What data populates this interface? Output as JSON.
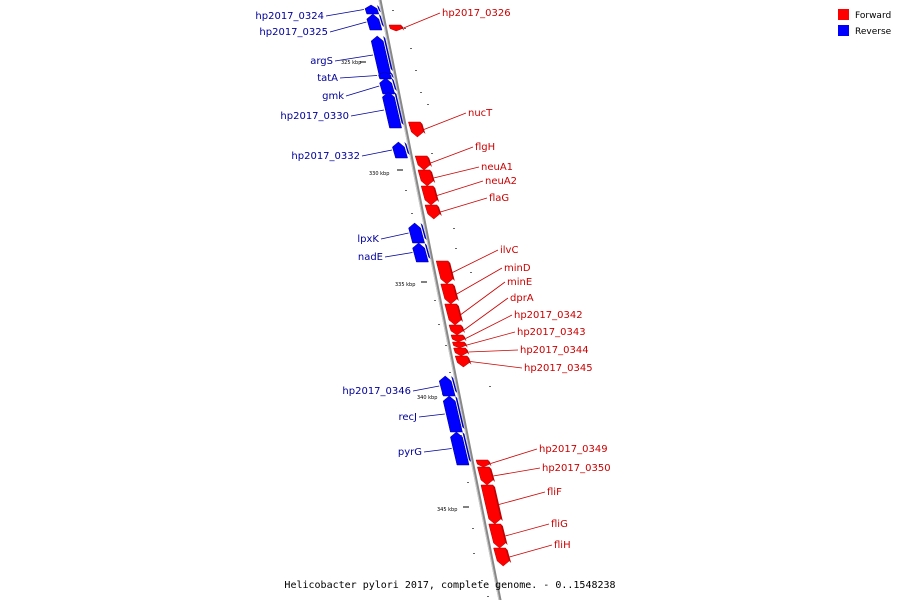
{
  "legend": {
    "forward_label": "Forward",
    "reverse_label": "Reverse",
    "forward_color": "#ff0000",
    "reverse_color": "#0000ff"
  },
  "colors": {
    "backbone": "#888888",
    "forward_label": "#cc0000",
    "reverse_label": "#00009a"
  },
  "caption": "Helicobacter pylori 2017, complete genome. - 0..1548238",
  "ticks": [
    "325 kbp",
    "330 kbp",
    "335 kbp",
    "340 kbp",
    "345 kbp"
  ],
  "genes": [
    {
      "name": "hp2017_0324",
      "strand": "reverse"
    },
    {
      "name": "hp2017_0325",
      "strand": "reverse"
    },
    {
      "name": "hp2017_0326",
      "strand": "forward"
    },
    {
      "name": "argS",
      "strand": "reverse"
    },
    {
      "name": "tatA",
      "strand": "reverse"
    },
    {
      "name": "gmk",
      "strand": "reverse"
    },
    {
      "name": "hp2017_0330",
      "strand": "reverse"
    },
    {
      "name": "nucT",
      "strand": "forward"
    },
    {
      "name": "flgH",
      "strand": "forward"
    },
    {
      "name": "hp2017_0332",
      "strand": "reverse"
    },
    {
      "name": "neuA1",
      "strand": "forward"
    },
    {
      "name": "neuA2",
      "strand": "forward"
    },
    {
      "name": "flaG",
      "strand": "forward"
    },
    {
      "name": "lpxK",
      "strand": "reverse"
    },
    {
      "name": "nadE",
      "strand": "reverse"
    },
    {
      "name": "ilvC",
      "strand": "forward"
    },
    {
      "name": "minD",
      "strand": "forward"
    },
    {
      "name": "minE",
      "strand": "forward"
    },
    {
      "name": "dprA",
      "strand": "forward"
    },
    {
      "name": "hp2017_0342",
      "strand": "forward"
    },
    {
      "name": "hp2017_0343",
      "strand": "forward"
    },
    {
      "name": "hp2017_0344",
      "strand": "forward"
    },
    {
      "name": "hp2017_0345",
      "strand": "forward"
    },
    {
      "name": "hp2017_0346",
      "strand": "reverse"
    },
    {
      "name": "recJ",
      "strand": "reverse"
    },
    {
      "name": "pyrG",
      "strand": "reverse"
    },
    {
      "name": "hp2017_0349",
      "strand": "forward"
    },
    {
      "name": "hp2017_0350",
      "strand": "forward"
    },
    {
      "name": "fliF",
      "strand": "forward"
    },
    {
      "name": "fliG",
      "strand": "forward"
    },
    {
      "name": "fliH",
      "strand": "forward"
    }
  ]
}
